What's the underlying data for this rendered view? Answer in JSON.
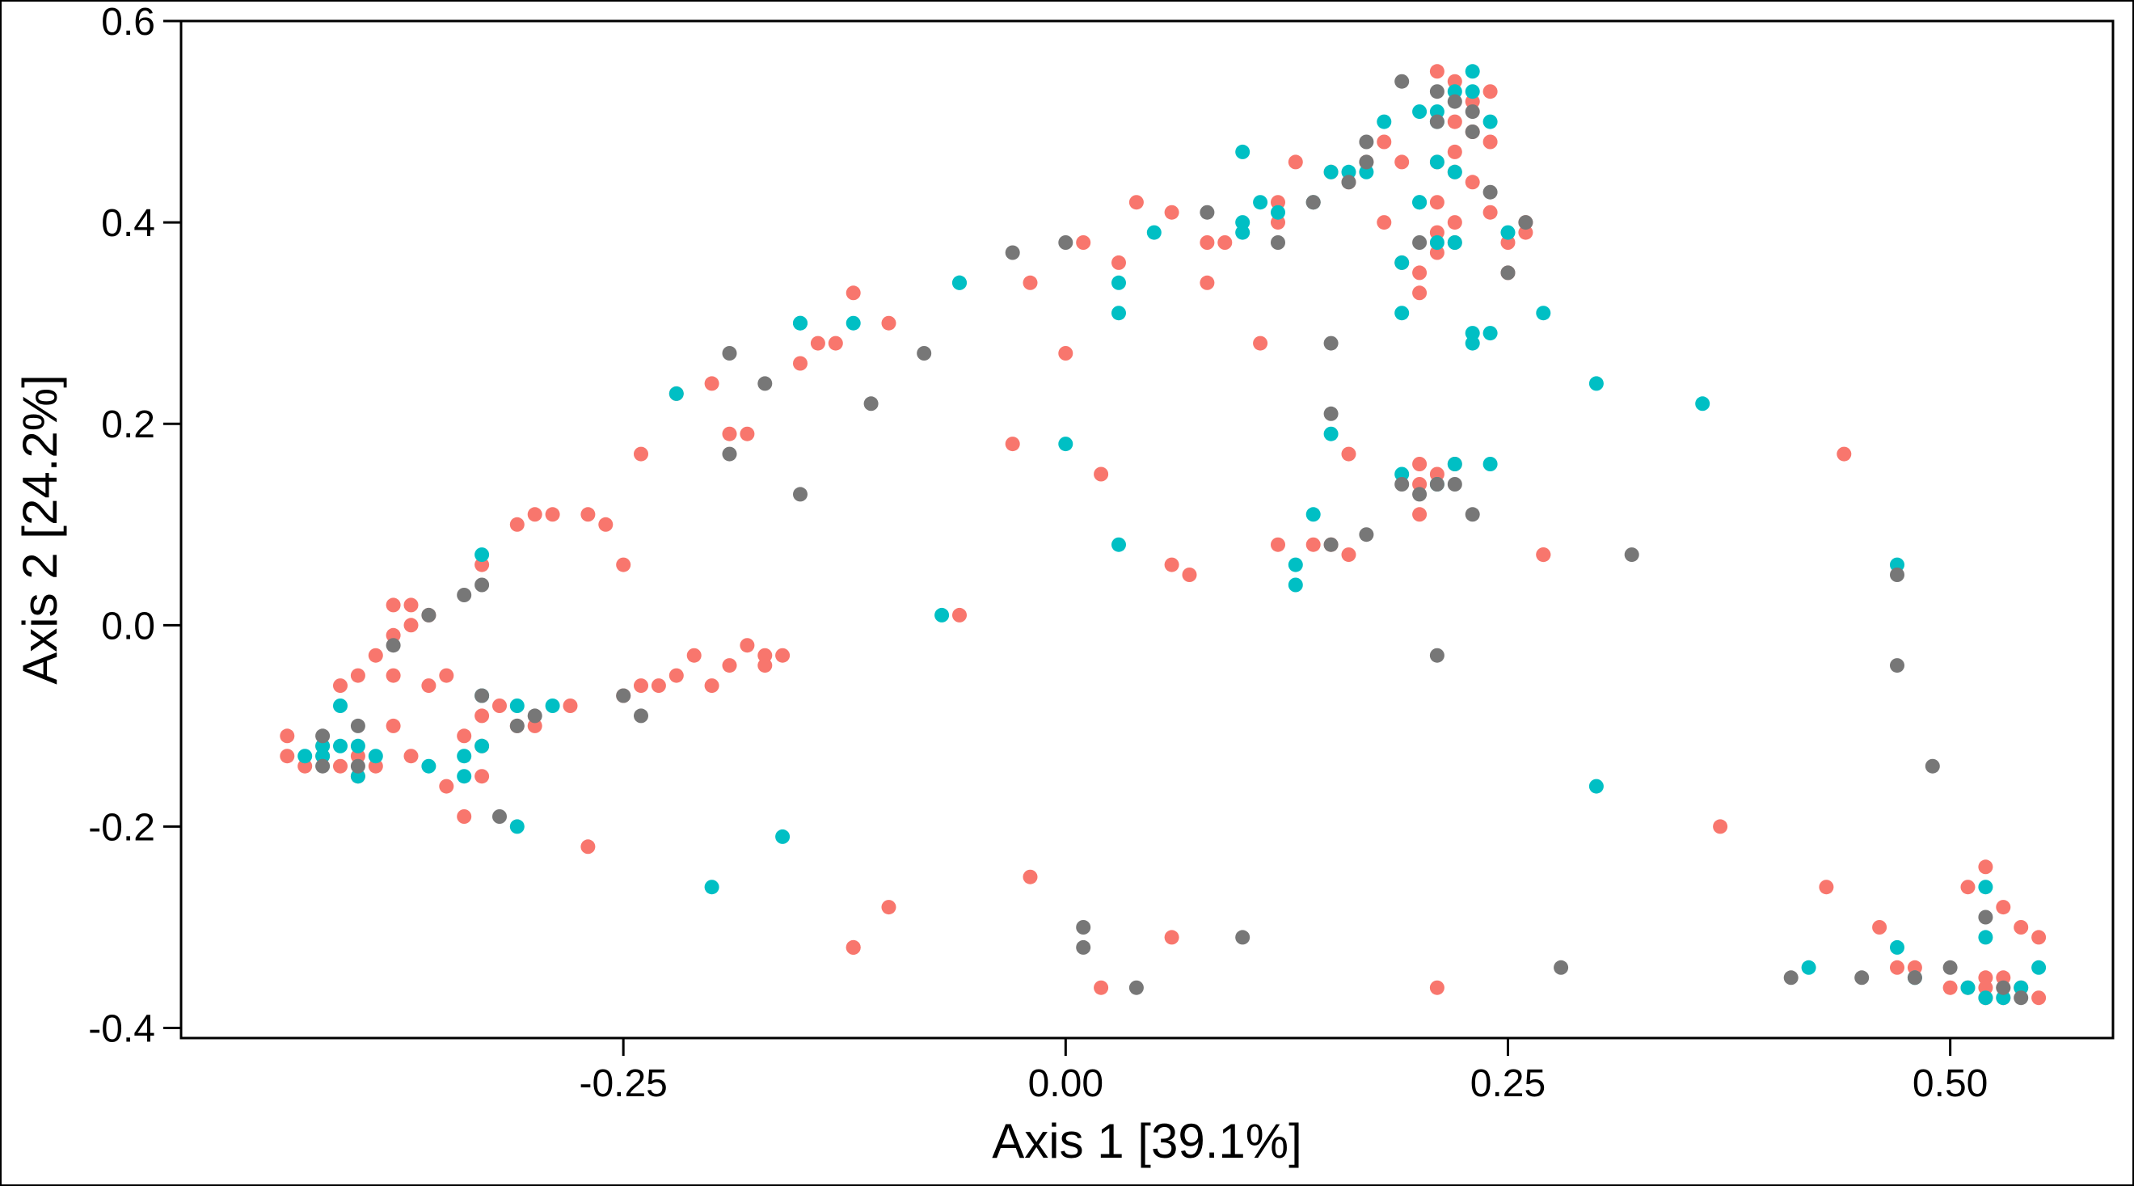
{
  "chart_data": {
    "type": "scatter",
    "title": "",
    "xlabel": "Axis 1 [39.1%]",
    "ylabel": "Axis 2 [24.2%]",
    "xlim": [
      -0.5,
      0.592
    ],
    "ylim": [
      -0.41,
      0.6
    ],
    "xticks": [
      -0.25,
      0.0,
      0.25,
      0.5
    ],
    "xtick_labels": [
      "-0.25",
      "0.00",
      "0.25",
      "0.50"
    ],
    "yticks": [
      -0.4,
      -0.2,
      0.0,
      0.2,
      0.4,
      0.6
    ],
    "ytick_labels": [
      "-0.4",
      "-0.2",
      "0.0",
      "0.2",
      "0.4",
      "0.6"
    ],
    "grid": false,
    "legend": "none",
    "colors": {
      "salmon": "#F8766D",
      "teal": "#00BFC4",
      "gray": "#777777"
    },
    "series": [
      {
        "color": "#F8766D",
        "points": [
          [
            -0.4,
            -0.13
          ],
          [
            -0.41,
            -0.14
          ],
          [
            -0.42,
            -0.13
          ],
          [
            -0.43,
            -0.14
          ],
          [
            -0.4,
            -0.15
          ],
          [
            -0.39,
            -0.14
          ],
          [
            -0.42,
            -0.12
          ],
          [
            -0.44,
            -0.11
          ],
          [
            -0.44,
            -0.13
          ],
          [
            -0.37,
            -0.13
          ],
          [
            -0.38,
            -0.1
          ],
          [
            -0.4,
            -0.05
          ],
          [
            -0.41,
            -0.06
          ],
          [
            -0.38,
            -0.05
          ],
          [
            -0.36,
            -0.06
          ],
          [
            -0.39,
            -0.03
          ],
          [
            -0.37,
            0.0
          ],
          [
            -0.38,
            -0.01
          ],
          [
            -0.37,
            0.02
          ],
          [
            -0.38,
            0.02
          ],
          [
            -0.36,
            0.01
          ],
          [
            -0.34,
            -0.11
          ],
          [
            -0.35,
            -0.16
          ],
          [
            -0.33,
            -0.15
          ],
          [
            -0.34,
            -0.19
          ],
          [
            -0.33,
            -0.12
          ],
          [
            -0.35,
            -0.05
          ],
          [
            -0.33,
            -0.09
          ],
          [
            -0.31,
            -0.1
          ],
          [
            -0.32,
            -0.08
          ],
          [
            -0.3,
            -0.1
          ],
          [
            -0.28,
            -0.08
          ],
          [
            -0.27,
            -0.22
          ],
          [
            -0.25,
            -0.07
          ],
          [
            -0.24,
            -0.06
          ],
          [
            -0.23,
            -0.06
          ],
          [
            -0.21,
            -0.03
          ],
          [
            -0.2,
            -0.06
          ],
          [
            -0.18,
            -0.02
          ],
          [
            -0.17,
            -0.03
          ],
          [
            -0.16,
            -0.03
          ],
          [
            -0.17,
            -0.04
          ],
          [
            -0.19,
            -0.04
          ],
          [
            -0.22,
            -0.05
          ],
          [
            -0.33,
            0.06
          ],
          [
            -0.31,
            0.1
          ],
          [
            -0.3,
            0.11
          ],
          [
            -0.29,
            0.11
          ],
          [
            -0.27,
            0.11
          ],
          [
            -0.26,
            0.1
          ],
          [
            -0.25,
            0.06
          ],
          [
            -0.24,
            0.17
          ],
          [
            -0.22,
            0.23
          ],
          [
            -0.2,
            0.24
          ],
          [
            -0.19,
            0.19
          ],
          [
            -0.18,
            0.19
          ],
          [
            -0.15,
            0.26
          ],
          [
            -0.14,
            0.28
          ],
          [
            -0.13,
            0.28
          ],
          [
            -0.12,
            0.33
          ],
          [
            -0.1,
            0.3
          ],
          [
            -0.03,
            0.18
          ],
          [
            -0.02,
            0.34
          ],
          [
            0.0,
            0.27
          ],
          [
            0.01,
            0.38
          ],
          [
            0.02,
            0.15
          ],
          [
            0.03,
            0.36
          ],
          [
            0.04,
            0.42
          ],
          [
            0.06,
            0.41
          ],
          [
            0.08,
            0.38
          ],
          [
            0.08,
            0.34
          ],
          [
            0.09,
            0.38
          ],
          [
            0.11,
            0.28
          ],
          [
            0.12,
            0.4
          ],
          [
            0.12,
            0.42
          ],
          [
            0.13,
            0.46
          ],
          [
            0.14,
            0.42
          ],
          [
            0.15,
            0.45
          ],
          [
            0.16,
            0.44
          ],
          [
            0.17,
            0.46
          ],
          [
            0.18,
            0.48
          ],
          [
            0.18,
            0.4
          ],
          [
            0.19,
            0.46
          ],
          [
            0.19,
            0.36
          ],
          [
            0.2,
            0.35
          ],
          [
            0.2,
            0.33
          ],
          [
            0.21,
            0.37
          ],
          [
            0.21,
            0.39
          ],
          [
            0.21,
            0.42
          ],
          [
            0.22,
            0.4
          ],
          [
            0.22,
            0.38
          ],
          [
            0.22,
            0.45
          ],
          [
            0.22,
            0.47
          ],
          [
            0.22,
            0.5
          ],
          [
            0.23,
            0.49
          ],
          [
            0.23,
            0.52
          ],
          [
            0.24,
            0.48
          ],
          [
            0.24,
            0.53
          ],
          [
            0.21,
            0.55
          ],
          [
            0.22,
            0.54
          ],
          [
            0.23,
            0.44
          ],
          [
            0.24,
            0.41
          ],
          [
            0.25,
            0.35
          ],
          [
            0.25,
            0.38
          ],
          [
            0.26,
            0.39
          ],
          [
            0.26,
            0.4
          ],
          [
            0.21,
            0.46
          ],
          [
            -0.12,
            -0.32
          ],
          [
            -0.12,
            -0.32
          ],
          [
            -0.1,
            -0.28
          ],
          [
            -0.02,
            -0.25
          ],
          [
            0.02,
            -0.36
          ],
          [
            0.06,
            -0.31
          ],
          [
            0.06,
            0.06
          ],
          [
            0.07,
            0.05
          ],
          [
            0.12,
            0.08
          ],
          [
            0.14,
            0.08
          ],
          [
            0.15,
            0.08
          ],
          [
            0.16,
            0.07
          ],
          [
            -0.06,
            0.01
          ],
          [
            0.16,
            0.17
          ],
          [
            0.2,
            0.16
          ],
          [
            0.2,
            0.14
          ],
          [
            0.2,
            0.11
          ],
          [
            0.21,
            0.15
          ],
          [
            0.22,
            0.16
          ],
          [
            0.21,
            -0.36
          ],
          [
            0.27,
            0.07
          ],
          [
            0.27,
            0.07
          ],
          [
            0.37,
            -0.2
          ],
          [
            0.43,
            -0.26
          ],
          [
            0.44,
            0.17
          ],
          [
            0.46,
            -0.3
          ],
          [
            0.47,
            -0.34
          ],
          [
            0.48,
            -0.34
          ],
          [
            0.5,
            -0.36
          ],
          [
            0.51,
            -0.26
          ],
          [
            0.51,
            -0.36
          ],
          [
            0.52,
            -0.35
          ],
          [
            0.52,
            -0.36
          ],
          [
            0.52,
            -0.37
          ],
          [
            0.53,
            -0.37
          ],
          [
            0.53,
            -0.36
          ],
          [
            0.53,
            -0.35
          ],
          [
            0.52,
            -0.24
          ],
          [
            0.53,
            -0.28
          ],
          [
            0.54,
            -0.3
          ],
          [
            0.54,
            -0.36
          ],
          [
            0.55,
            -0.37
          ],
          [
            0.55,
            -0.31
          ]
        ]
      },
      {
        "color": "#00BFC4",
        "points": [
          [
            -0.43,
            -0.13
          ],
          [
            -0.42,
            -0.12
          ],
          [
            -0.42,
            -0.13
          ],
          [
            -0.41,
            -0.12
          ],
          [
            -0.4,
            -0.12
          ],
          [
            -0.41,
            -0.08
          ],
          [
            -0.4,
            -0.15
          ],
          [
            -0.39,
            -0.13
          ],
          [
            -0.36,
            -0.14
          ],
          [
            -0.34,
            -0.15
          ],
          [
            -0.34,
            -0.13
          ],
          [
            -0.33,
            -0.07
          ],
          [
            -0.33,
            -0.12
          ],
          [
            -0.31,
            -0.08
          ],
          [
            -0.29,
            -0.08
          ],
          [
            -0.31,
            -0.2
          ],
          [
            -0.2,
            -0.26
          ],
          [
            -0.16,
            -0.21
          ],
          [
            -0.33,
            0.07
          ],
          [
            -0.22,
            0.23
          ],
          [
            -0.15,
            0.3
          ],
          [
            -0.15,
            0.3
          ],
          [
            -0.12,
            0.3
          ],
          [
            -0.06,
            0.34
          ],
          [
            -0.06,
            0.34
          ],
          [
            0.0,
            0.18
          ],
          [
            0.03,
            0.31
          ],
          [
            0.03,
            0.34
          ],
          [
            0.05,
            0.39
          ],
          [
            0.1,
            0.47
          ],
          [
            0.1,
            0.4
          ],
          [
            0.1,
            0.39
          ],
          [
            0.11,
            0.42
          ],
          [
            0.12,
            0.41
          ],
          [
            0.14,
            0.42
          ],
          [
            0.15,
            0.45
          ],
          [
            0.16,
            0.45
          ],
          [
            0.17,
            0.45
          ],
          [
            0.18,
            0.5
          ],
          [
            0.19,
            0.36
          ],
          [
            0.19,
            0.31
          ],
          [
            0.2,
            0.42
          ],
          [
            0.2,
            0.42
          ],
          [
            0.2,
            0.51
          ],
          [
            0.21,
            0.5
          ],
          [
            0.21,
            0.46
          ],
          [
            0.21,
            0.38
          ],
          [
            0.22,
            0.38
          ],
          [
            0.21,
            0.51
          ],
          [
            0.22,
            0.53
          ],
          [
            0.23,
            0.53
          ],
          [
            0.23,
            0.55
          ],
          [
            0.24,
            0.5
          ],
          [
            0.23,
            0.29
          ],
          [
            0.24,
            0.29
          ],
          [
            0.23,
            0.28
          ],
          [
            0.25,
            0.39
          ],
          [
            0.27,
            0.31
          ],
          [
            0.22,
            0.45
          ],
          [
            0.03,
            0.08
          ],
          [
            0.13,
            0.06
          ],
          [
            0.13,
            0.04
          ],
          [
            0.14,
            0.11
          ],
          [
            0.15,
            0.19
          ],
          [
            0.19,
            0.15
          ],
          [
            0.21,
            0.14
          ],
          [
            0.22,
            0.16
          ],
          [
            0.24,
            0.16
          ],
          [
            0.3,
            0.24
          ],
          [
            0.36,
            0.22
          ],
          [
            0.3,
            -0.16
          ],
          [
            -0.07,
            0.01
          ],
          [
            0.42,
            -0.34
          ],
          [
            0.47,
            -0.32
          ],
          [
            0.47,
            0.06
          ],
          [
            0.48,
            -0.35
          ],
          [
            0.52,
            -0.26
          ],
          [
            0.52,
            -0.31
          ],
          [
            0.51,
            -0.36
          ],
          [
            0.52,
            -0.37
          ],
          [
            0.53,
            -0.37
          ],
          [
            0.54,
            -0.36
          ],
          [
            0.55,
            -0.34
          ]
        ]
      },
      {
        "color": "#777777",
        "points": [
          [
            -0.42,
            -0.14
          ],
          [
            -0.42,
            -0.11
          ],
          [
            -0.4,
            -0.14
          ],
          [
            -0.4,
            -0.1
          ],
          [
            -0.38,
            -0.02
          ],
          [
            -0.36,
            0.01
          ],
          [
            -0.34,
            0.03
          ],
          [
            -0.33,
            0.04
          ],
          [
            -0.33,
            -0.07
          ],
          [
            -0.31,
            -0.1
          ],
          [
            -0.32,
            -0.19
          ],
          [
            -0.3,
            -0.09
          ],
          [
            -0.25,
            -0.07
          ],
          [
            -0.24,
            -0.09
          ],
          [
            -0.19,
            0.17
          ],
          [
            -0.19,
            0.27
          ],
          [
            -0.17,
            0.24
          ],
          [
            -0.15,
            0.13
          ],
          [
            -0.11,
            0.22
          ],
          [
            -0.08,
            0.27
          ],
          [
            -0.03,
            0.37
          ],
          [
            0.0,
            0.38
          ],
          [
            0.08,
            0.41
          ],
          [
            0.12,
            0.38
          ],
          [
            0.14,
            0.42
          ],
          [
            0.15,
            0.28
          ],
          [
            0.16,
            0.44
          ],
          [
            0.17,
            0.46
          ],
          [
            0.17,
            0.48
          ],
          [
            0.15,
            0.21
          ],
          [
            0.15,
            0.08
          ],
          [
            0.17,
            0.09
          ],
          [
            0.19,
            0.14
          ],
          [
            0.2,
            0.13
          ],
          [
            0.21,
            0.14
          ],
          [
            0.22,
            0.14
          ],
          [
            0.23,
            0.11
          ],
          [
            0.21,
            -0.03
          ],
          [
            0.19,
            0.54
          ],
          [
            0.2,
            0.38
          ],
          [
            0.21,
            0.5
          ],
          [
            0.22,
            0.52
          ],
          [
            0.23,
            0.51
          ],
          [
            0.23,
            0.49
          ],
          [
            0.24,
            0.43
          ],
          [
            0.25,
            0.35
          ],
          [
            0.26,
            0.4
          ],
          [
            0.21,
            0.53
          ],
          [
            0.01,
            -0.3
          ],
          [
            0.01,
            -0.32
          ],
          [
            0.04,
            -0.36
          ],
          [
            0.1,
            -0.31
          ],
          [
            0.28,
            -0.34
          ],
          [
            0.32,
            0.07
          ],
          [
            0.41,
            -0.35
          ],
          [
            0.45,
            -0.35
          ],
          [
            0.47,
            -0.04
          ],
          [
            0.47,
            0.05
          ],
          [
            0.49,
            -0.14
          ],
          [
            0.48,
            -0.35
          ],
          [
            0.5,
            -0.34
          ],
          [
            0.52,
            -0.29
          ],
          [
            0.53,
            -0.36
          ],
          [
            0.54,
            -0.37
          ]
        ]
      }
    ]
  }
}
